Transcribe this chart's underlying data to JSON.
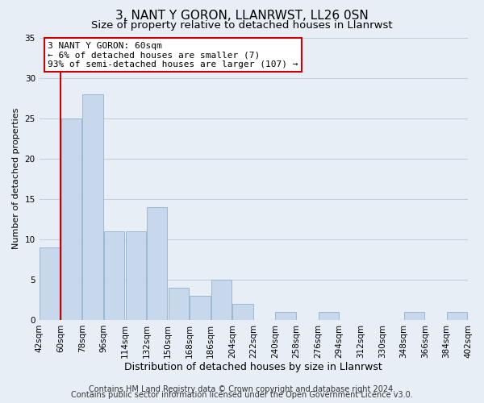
{
  "title": "3, NANT Y GORON, LLANRWST, LL26 0SN",
  "subtitle": "Size of property relative to detached houses in Llanrwst",
  "xlabel": "Distribution of detached houses by size in Llanrwst",
  "ylabel": "Number of detached properties",
  "bar_color": "#c8d8ec",
  "bar_edge_color": "#9ab8d0",
  "highlight_color": "#cc0000",
  "bin_edges": [
    42,
    60,
    78,
    96,
    114,
    132,
    150,
    168,
    186,
    204,
    222,
    240,
    258,
    276,
    294,
    312,
    330,
    348,
    366,
    384,
    402
  ],
  "bar_heights": [
    9,
    25,
    28,
    11,
    11,
    14,
    4,
    3,
    5,
    2,
    0,
    1,
    0,
    1,
    0,
    0,
    0,
    1,
    0,
    1
  ],
  "ylim": [
    0,
    35
  ],
  "yticks": [
    0,
    5,
    10,
    15,
    20,
    25,
    30,
    35
  ],
  "annotation_text": "3 NANT Y GORON: 60sqm\n← 6% of detached houses are smaller (7)\n93% of semi-detached houses are larger (107) →",
  "annotation_box_color": "#ffffff",
  "annotation_box_edge_color": "#cc0000",
  "footer_line1": "Contains HM Land Registry data © Crown copyright and database right 2024.",
  "footer_line2": "Contains public sector information licensed under the Open Government Licence v3.0.",
  "background_color": "#e8eef5",
  "plot_background_color": "#e8eef5",
  "grid_color": "#c5cfd8",
  "title_fontsize": 11,
  "subtitle_fontsize": 9.5,
  "xlabel_fontsize": 9,
  "ylabel_fontsize": 8,
  "tick_fontsize": 7.5,
  "annotation_fontsize": 8,
  "footer_fontsize": 7
}
